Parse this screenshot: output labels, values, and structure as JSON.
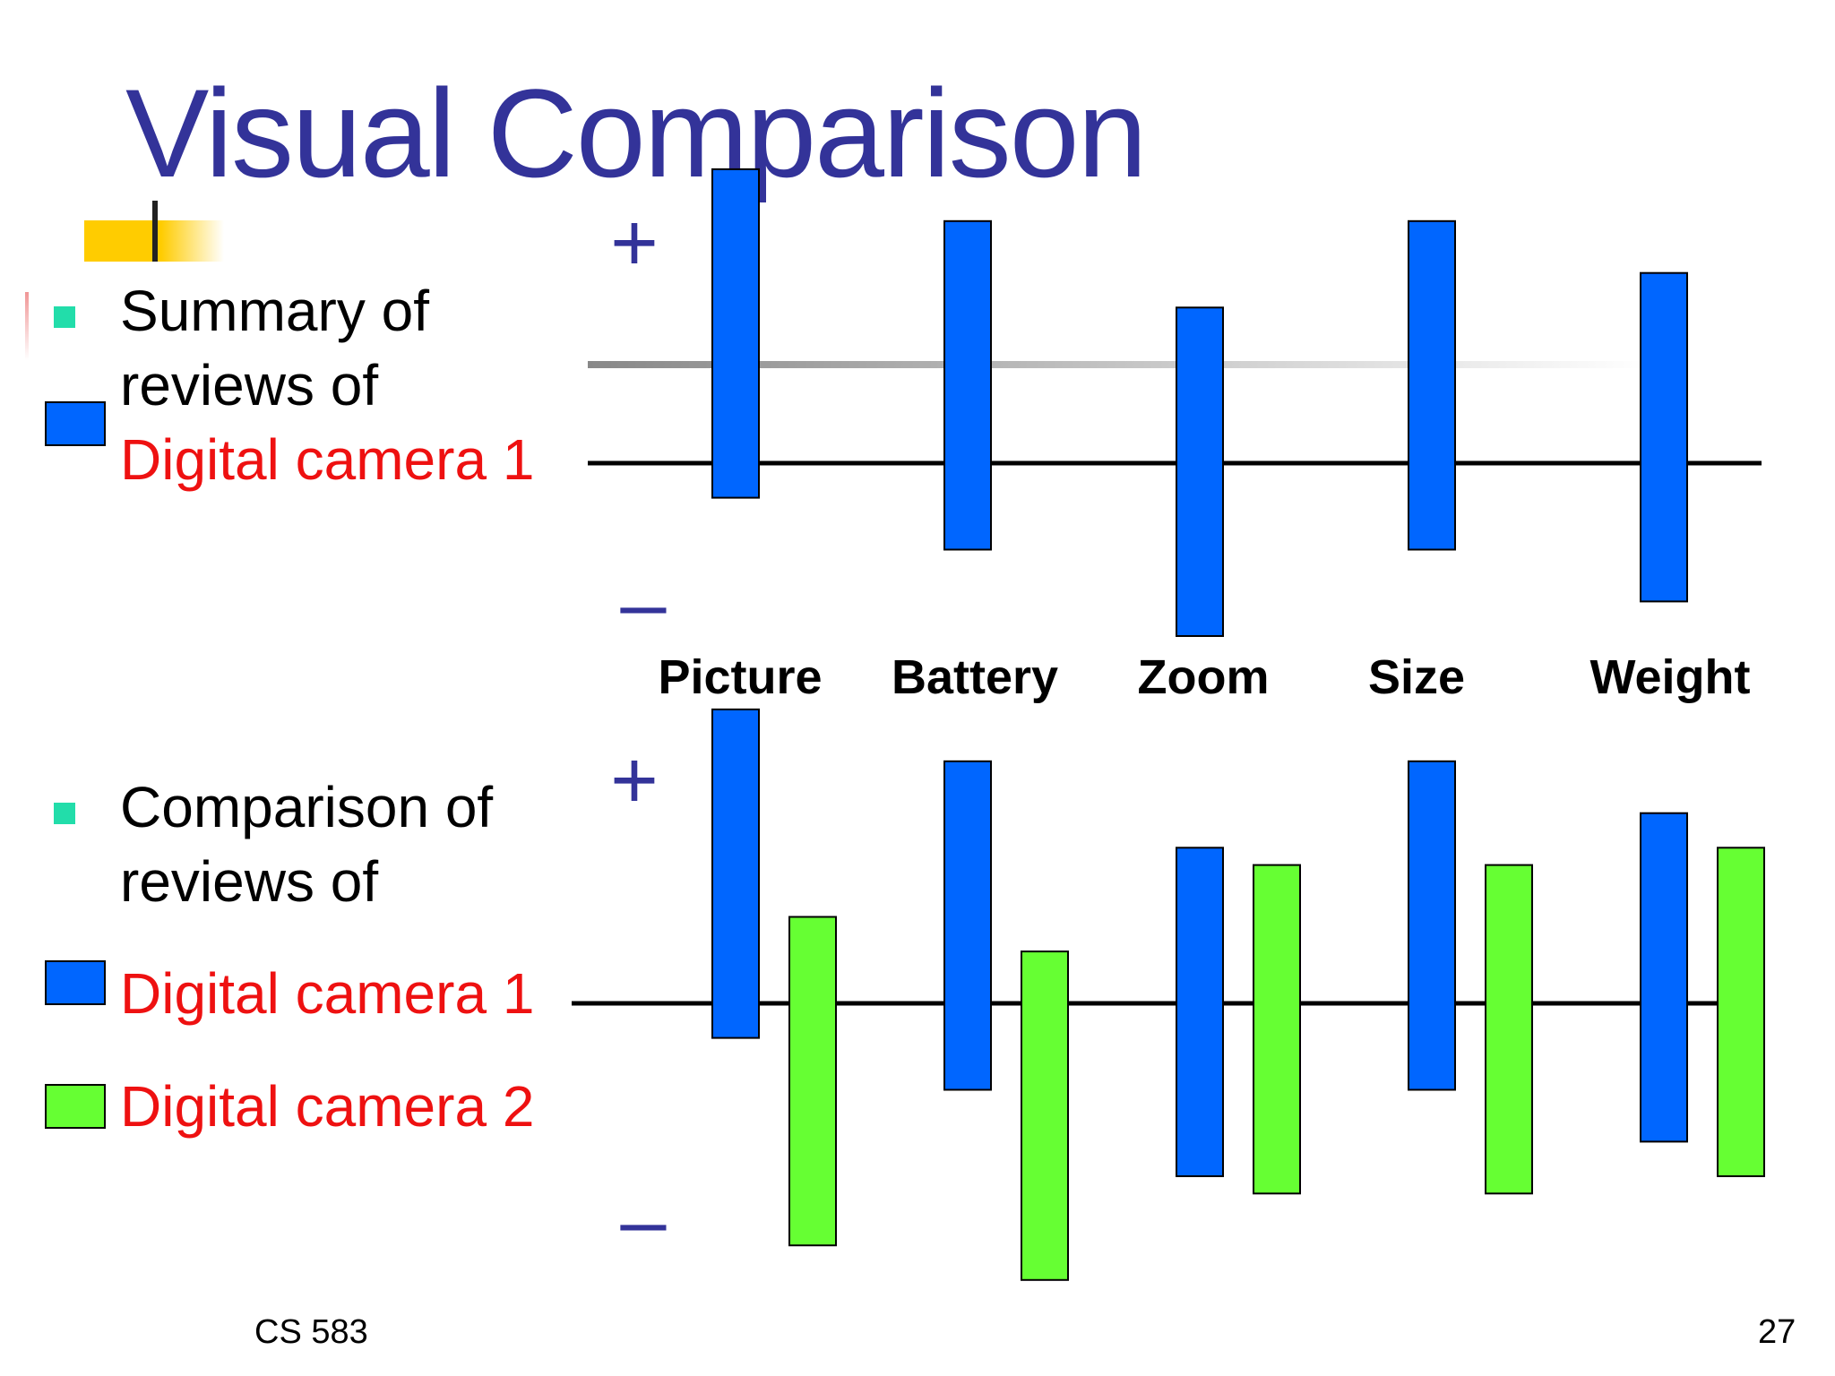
{
  "title": "Visual Comparison",
  "section1": {
    "lines": [
      "Summary of",
      "reviews of"
    ],
    "camera_label": "Digital camera 1"
  },
  "section2": {
    "lines": [
      "Comparison of",
      "reviews of"
    ],
    "camera1_label": "Digital camera 1",
    "camera2_label": "Digital camera 2"
  },
  "plus_label": "+",
  "minus_label": "–",
  "footer": {
    "course": "CS 583",
    "page": "27"
  },
  "colors": {
    "camera1": "#0066ff",
    "camera2": "#66ff33",
    "title": "#333399",
    "camera_text": "#ee1111",
    "bullet": "#22ddaa"
  },
  "chart_data": [
    {
      "type": "bar",
      "categories": [
        "Picture",
        "Battery",
        "Zoom",
        "Size",
        "Weight"
      ],
      "series": [
        {
          "name": "Digital camera 1",
          "positive": [
            170,
            140,
            90,
            140,
            110
          ],
          "negative": [
            20,
            50,
            100,
            50,
            80
          ]
        }
      ]
    },
    {
      "type": "bar",
      "categories": [
        "Picture",
        "Battery",
        "Zoom",
        "Size",
        "Weight"
      ],
      "series": [
        {
          "name": "Digital camera 1",
          "positive": [
            170,
            140,
            90,
            140,
            110
          ],
          "negative": [
            20,
            50,
            100,
            50,
            80
          ]
        },
        {
          "name": "Digital camera 2",
          "positive": [
            50,
            30,
            80,
            80,
            90
          ],
          "negative": [
            140,
            160,
            110,
            110,
            100
          ]
        }
      ]
    }
  ]
}
